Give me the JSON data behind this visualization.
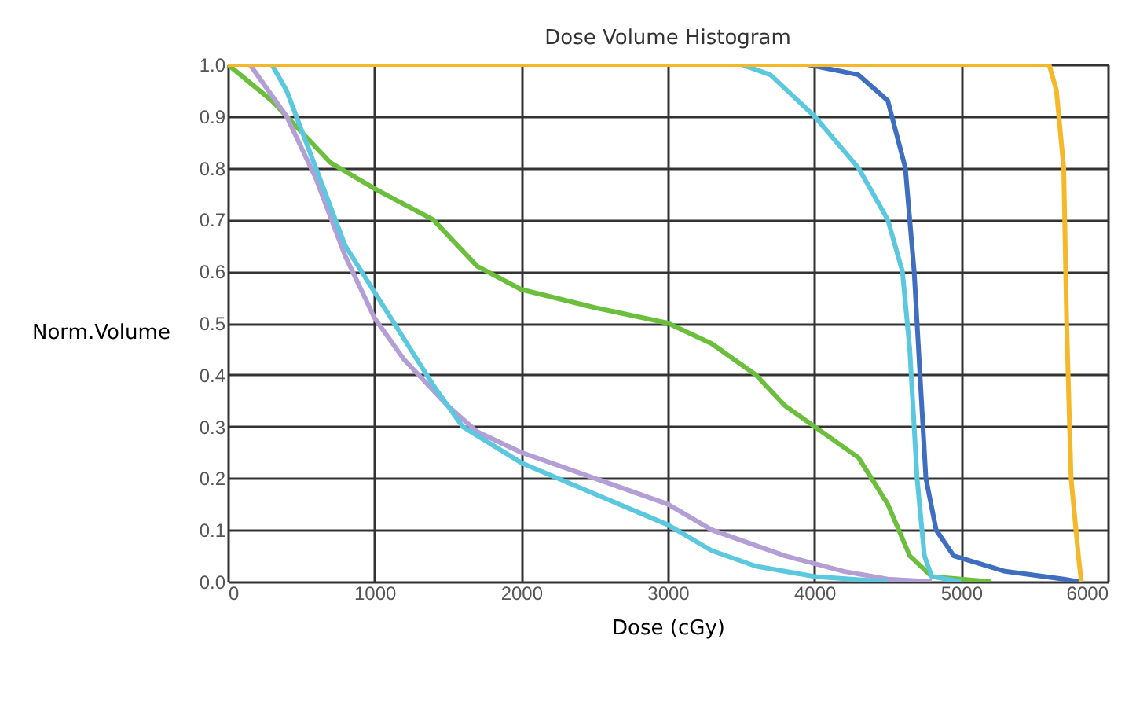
{
  "chart_data": {
    "type": "line",
    "title": "Dose Volume Histogram",
    "xlabel": "Dose (cGy)",
    "ylabel": "Norm.Volume",
    "xlim": [
      0,
      6000
    ],
    "xticks": [
      0,
      1000,
      2000,
      3000,
      4000,
      5000,
      6000
    ],
    "ylim": [
      0,
      1
    ],
    "yticks": [
      {
        "value": 0,
        "label": "0.0"
      },
      0.1,
      0.2,
      0.3,
      0.4,
      0.5,
      0.6,
      0.7,
      0.8,
      0.9,
      {
        "value": 1,
        "label": "1.0"
      }
    ],
    "grid": true,
    "legend": false,
    "marker": "none",
    "line_style": "solid",
    "series": [
      {
        "color": "#6cbf3c",
        "x": [
          0,
          300,
          500,
          700,
          1000,
          1400,
          1700,
          2000,
          2500,
          3000,
          3300,
          3600,
          3800,
          4000,
          4300,
          4500,
          4650,
          4800,
          5000,
          5200
        ],
        "values": [
          1.0,
          0.93,
          0.87,
          0.81,
          0.76,
          0.7,
          0.61,
          0.565,
          0.53,
          0.5,
          0.46,
          0.4,
          0.34,
          0.3,
          0.24,
          0.15,
          0.05,
          0.01,
          0.005,
          0
        ]
      },
      {
        "color": "#b49ed6",
        "x": [
          0,
          150,
          400,
          600,
          800,
          1000,
          1200,
          1500,
          1700,
          2000,
          2500,
          3000,
          3300,
          3800,
          4200,
          4500,
          4800
        ],
        "values": [
          1,
          1,
          0.9,
          0.78,
          0.63,
          0.51,
          0.43,
          0.34,
          0.29,
          0.25,
          0.2,
          0.15,
          0.1,
          0.05,
          0.02,
          0.005,
          0
        ]
      },
      {
        "color": "#5bc8e0",
        "x": [
          0,
          300,
          400,
          600,
          800,
          1000,
          1200,
          1400,
          1600,
          2000,
          2500,
          3000,
          3300,
          3600,
          4000,
          4500
        ],
        "values": [
          1,
          1,
          0.95,
          0.8,
          0.65,
          0.56,
          0.47,
          0.38,
          0.3,
          0.23,
          0.17,
          0.11,
          0.06,
          0.03,
          0.01,
          0
        ]
      },
      {
        "color": "#5bc8e0",
        "x": [
          0,
          3500,
          3700,
          4000,
          4300,
          4500,
          4600,
          4650,
          4700,
          4750,
          4800,
          5000
        ],
        "values": [
          1,
          1,
          0.98,
          0.9,
          0.8,
          0.7,
          0.6,
          0.45,
          0.2,
          0.05,
          0.01,
          0
        ]
      },
      {
        "color": "#3f6dbf",
        "x": [
          0,
          3950,
          4300,
          4500,
          4620,
          4680,
          4720,
          4760,
          4830,
          4950,
          5300,
          5700,
          5800
        ],
        "values": [
          1,
          1,
          0.98,
          0.93,
          0.8,
          0.6,
          0.4,
          0.2,
          0.1,
          0.05,
          0.02,
          0.005,
          0
        ]
      },
      {
        "color": "#f5b82a",
        "x": [
          0,
          5600,
          5650,
          5700,
          5720,
          5750,
          5800,
          5820
        ],
        "values": [
          1,
          1,
          0.95,
          0.8,
          0.5,
          0.2,
          0.05,
          0
        ]
      }
    ]
  }
}
